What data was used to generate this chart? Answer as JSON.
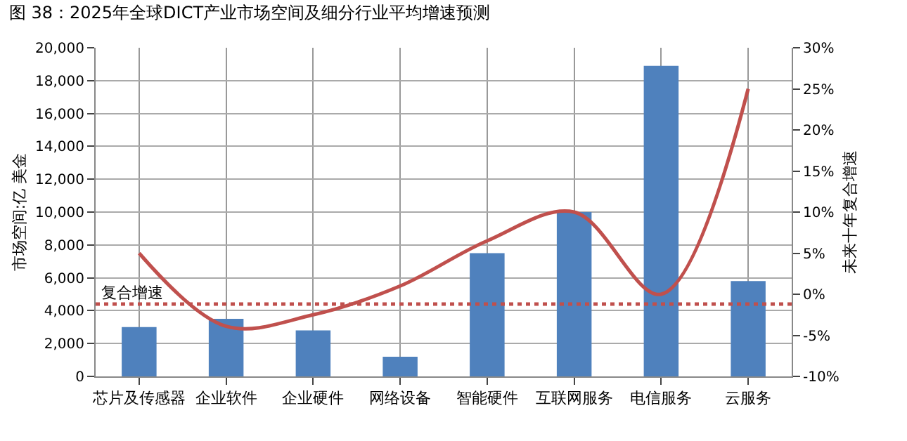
{
  "chart_data": {
    "type": "bar",
    "title": "图 38：2025年全球DICT产业市场空间及细分行业平均增速预测",
    "ylabel": "市场空间:亿 美金",
    "y2label": "未来十年复合增速",
    "categories": [
      "芯片及传感器",
      "企业软件",
      "企业硬件",
      "网络设备",
      "智能硬件",
      "互联网服务",
      "电信服务",
      "云服务"
    ],
    "series": [
      {
        "color": "#4f81bd",
        "values": [
          3000,
          3500,
          2800,
          1200,
          7500,
          10000,
          18900,
          5800
        ]
      },
      {
        "type": "line",
        "axis": "y2",
        "color": "#c0504d",
        "values": [
          5,
          -3.9,
          -2.5,
          1,
          6.5,
          10,
          0,
          25
        ]
      }
    ],
    "ylim": [
      0,
      20000
    ],
    "yticks": [
      {
        "value": 0,
        "label": "0"
      },
      {
        "value": 2000,
        "label": "2,000"
      },
      {
        "value": 4000,
        "label": "4,000"
      },
      {
        "value": 6000,
        "label": "6,000"
      },
      {
        "value": 8000,
        "label": "8,000"
      },
      {
        "value": 10000,
        "label": "10,000"
      },
      {
        "value": 12000,
        "label": "12,000"
      },
      {
        "value": 14000,
        "label": "14,000"
      },
      {
        "value": 16000,
        "label": "16,000"
      },
      {
        "value": 18000,
        "label": "18,000"
      },
      {
        "value": 20000,
        "label": "20,000"
      }
    ],
    "y2lim": [
      -10,
      30
    ],
    "y2ticks": [
      {
        "value": -10,
        "label": "-10%"
      },
      {
        "value": -5,
        "label": "-5%"
      },
      {
        "value": 0,
        "label": "0%"
      },
      {
        "value": 5,
        "label": "5%"
      },
      {
        "value": 10,
        "label": "10%"
      },
      {
        "value": 15,
        "label": "15%"
      },
      {
        "value": 20,
        "label": "20%"
      },
      {
        "value": 25,
        "label": "25%"
      },
      {
        "value": 30,
        "label": "30%"
      }
    ],
    "ref_lines": [
      {
        "axis": "y2",
        "value": -1.2,
        "label": "复合增速",
        "color": "#c0504d",
        "line_style": "dotted"
      }
    ],
    "grid": true,
    "legend": false,
    "marker": "none",
    "line_style": "solid"
  }
}
